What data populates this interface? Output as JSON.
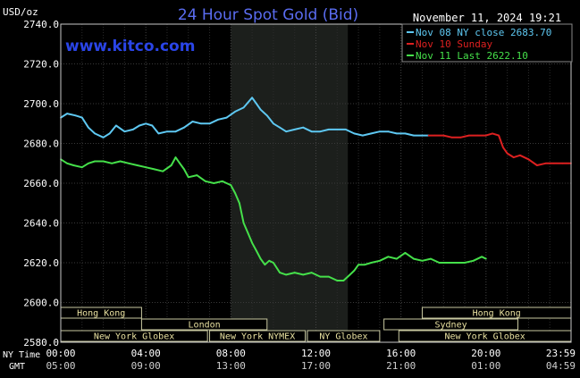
{
  "chart_data": {
    "type": "line",
    "title": "24 Hour Spot Gold (Bid)",
    "watermark": "www.kitco.com",
    "timestamp": "November 11, 2024 19:21",
    "ylabel": "USD/oz",
    "ylim": [
      2580,
      2740
    ],
    "y_ticks": [
      "2740.0",
      "2720.0",
      "2700.0",
      "2680.0",
      "2660.0",
      "2640.0",
      "2620.0",
      "2600.0",
      "2580.0"
    ],
    "xlim": [
      0,
      24
    ],
    "x_tick_positions": [
      0,
      4,
      8,
      12,
      16,
      20,
      24
    ],
    "ny_time_label": "NY Time",
    "gmt_label": "GMT",
    "ny_time_ticks": [
      "00:00",
      "04:00",
      "08:00",
      "12:00",
      "16:00",
      "20:00",
      "23:59"
    ],
    "gmt_ticks": [
      "05:00",
      "09:00",
      "13:00",
      "17:00",
      "21:00",
      "01:00",
      "04:59"
    ],
    "highlight_range": [
      8,
      13.5
    ],
    "grid": true,
    "legend_position": "top-right",
    "series": [
      {
        "name": "Nov 08 NY close 2683.70",
        "color": "#5ec8f2",
        "x": [
          0,
          0.3,
          0.7,
          1.0,
          1.3,
          1.6,
          2.0,
          2.3,
          2.6,
          3.0,
          3.4,
          3.7,
          4.0,
          4.3,
          4.6,
          5.0,
          5.4,
          5.8,
          6.2,
          6.6,
          7.0,
          7.4,
          7.8,
          8.2,
          8.6,
          9.0,
          9.2,
          9.4,
          9.7,
          10.0,
          10.3,
          10.6,
          11.0,
          11.4,
          11.8,
          12.2,
          12.6,
          13.0,
          13.4,
          13.8,
          14.2,
          14.6,
          15.0,
          15.4,
          15.8,
          16.2,
          16.6,
          17.0,
          17.3
        ],
        "y": [
          2693,
          2695,
          2694,
          2693,
          2688,
          2685,
          2683,
          2685,
          2689,
          2686,
          2687,
          2689,
          2690,
          2689,
          2685,
          2686,
          2686,
          2688,
          2691,
          2690,
          2690,
          2692,
          2693,
          2696,
          2698,
          2703,
          2700,
          2697,
          2694,
          2690,
          2688,
          2686,
          2687,
          2688,
          2686,
          2686,
          2687,
          2687,
          2687,
          2685,
          2684,
          2685,
          2686,
          2686,
          2685,
          2685,
          2684,
          2684,
          2684
        ]
      },
      {
        "name": "Nov 10 Sunday",
        "color": "#dd2020",
        "x": [
          17.3,
          17.6,
          18.0,
          18.4,
          18.8,
          19.2,
          19.6,
          20.0,
          20.3,
          20.6,
          20.8,
          21.0,
          21.3,
          21.6,
          22.0,
          22.4,
          22.8,
          23.2,
          23.6,
          24.0
        ],
        "y": [
          2684,
          2684,
          2684,
          2683,
          2683,
          2684,
          2684,
          2684,
          2685,
          2684,
          2678,
          2675,
          2673,
          2674,
          2672,
          2669,
          2670,
          2670,
          2670,
          2670
        ]
      },
      {
        "name": "Nov 11 Last 2622.10",
        "color": "#45e04a",
        "x": [
          0,
          0.3,
          0.6,
          1.0,
          1.3,
          1.6,
          2.0,
          2.4,
          2.8,
          3.2,
          3.6,
          4.0,
          4.4,
          4.8,
          5.2,
          5.4,
          5.6,
          5.8,
          6.0,
          6.4,
          6.8,
          7.2,
          7.6,
          8.0,
          8.2,
          8.4,
          8.6,
          8.8,
          9.0,
          9.2,
          9.4,
          9.6,
          9.8,
          10.0,
          10.3,
          10.6,
          11.0,
          11.4,
          11.8,
          12.2,
          12.6,
          13.0,
          13.3,
          13.6,
          13.8,
          14.0,
          14.3,
          14.6,
          15.0,
          15.4,
          15.8,
          16.2,
          16.6,
          17.0,
          17.4,
          17.8,
          18.2,
          18.6,
          19.0,
          19.4,
          19.8,
          20.0
        ],
        "y": [
          2672,
          2670,
          2669,
          2668,
          2670,
          2671,
          2671,
          2670,
          2671,
          2670,
          2669,
          2668,
          2667,
          2666,
          2669,
          2673,
          2670,
          2667,
          2663,
          2664,
          2661,
          2660,
          2661,
          2659,
          2655,
          2650,
          2640,
          2635,
          2630,
          2626,
          2622,
          2619,
          2621,
          2620,
          2615,
          2614,
          2615,
          2614,
          2615,
          2613,
          2613,
          2611,
          2611,
          2614,
          2616,
          2619,
          2619,
          2620,
          2621,
          2623,
          2622,
          2625,
          2622,
          2621,
          2622,
          2620,
          2620,
          2620,
          2620,
          2621,
          2623,
          2622
        ]
      }
    ],
    "sessions": [
      {
        "label": "Hong Kong",
        "row": 0,
        "start": 0,
        "end": 3.8
      },
      {
        "label": "London",
        "row": 1,
        "start": 3.8,
        "end": 9.7
      },
      {
        "label": "New York Globex",
        "row": 2,
        "start": 0,
        "end": 6.9
      },
      {
        "label": "New York NYMEX",
        "row": 2,
        "start": 7.0,
        "end": 11.5
      },
      {
        "label": "NY Globex",
        "row": 2,
        "start": 11.6,
        "end": 15.0
      },
      {
        "label": "Sydney",
        "row": 1,
        "start": 15.2,
        "end": 21.5
      },
      {
        "label": "Hong Kong",
        "row": 0,
        "start": 17.0,
        "end": 24.0
      },
      {
        "label": "New York Globex",
        "row": 2,
        "start": 15.9,
        "end": 24.0
      }
    ]
  }
}
